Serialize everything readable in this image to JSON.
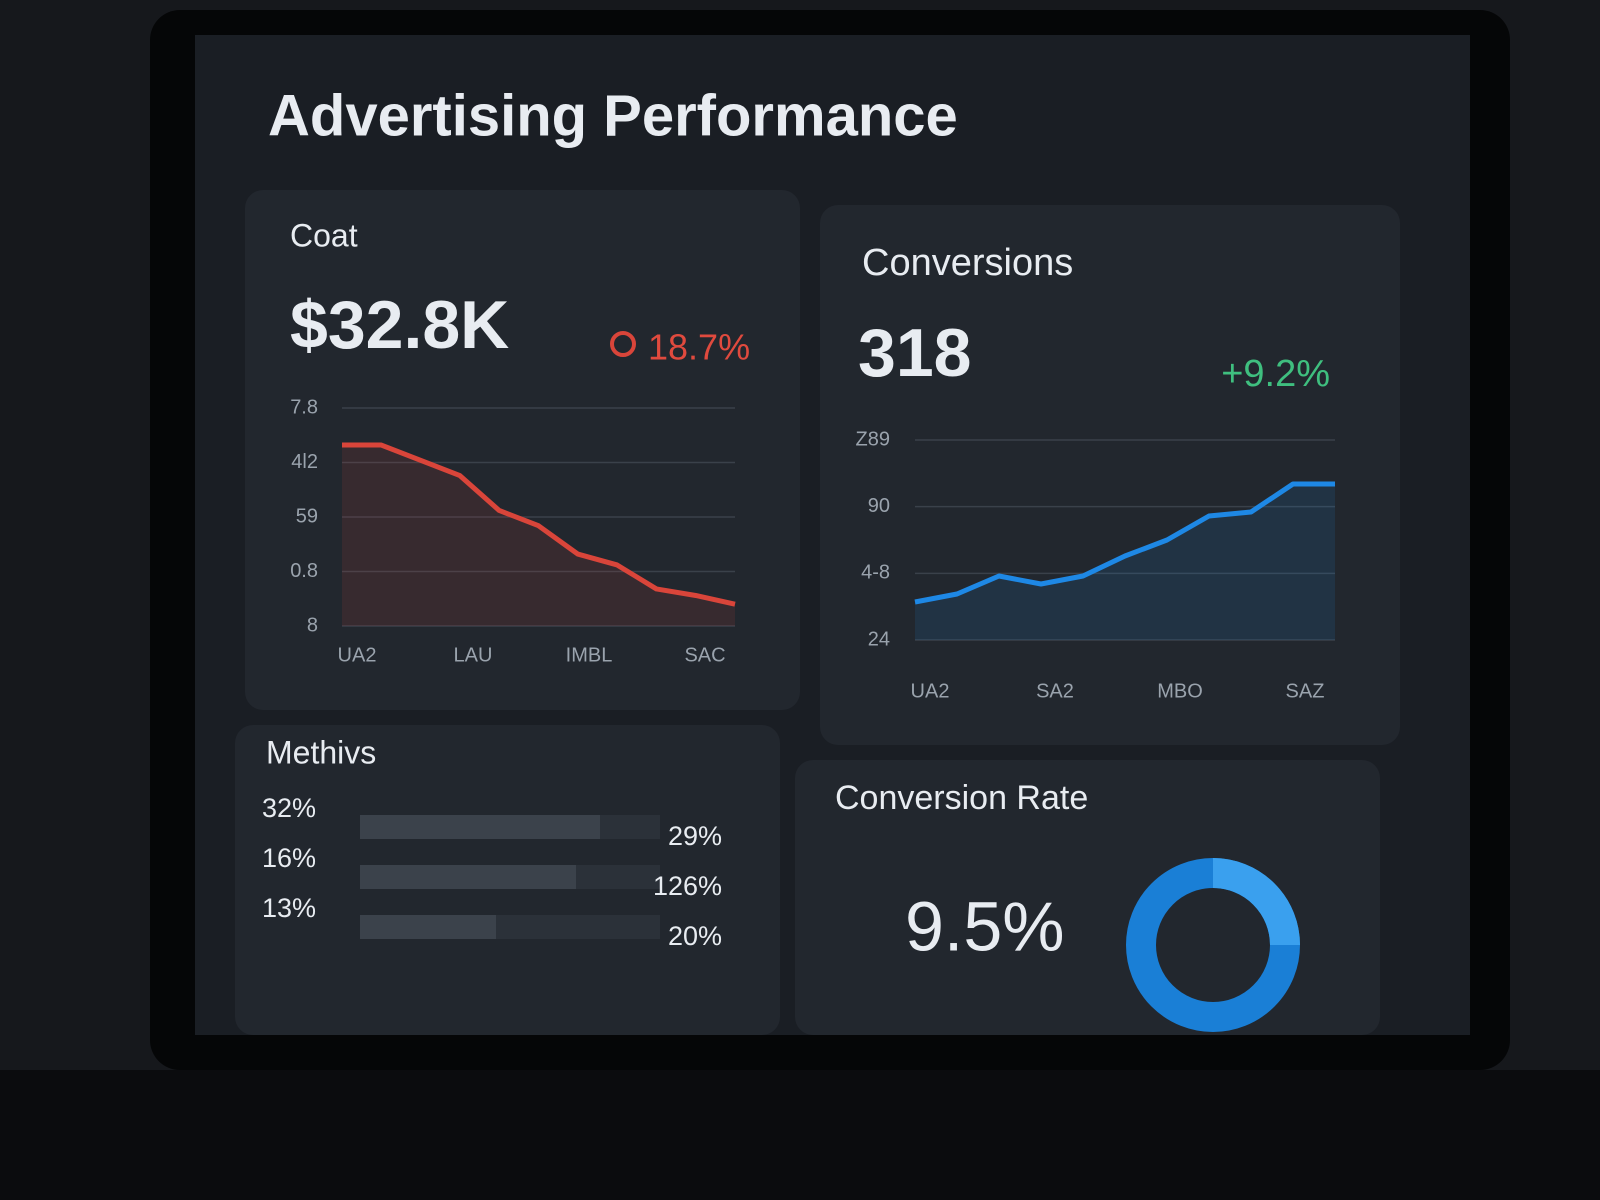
{
  "title": "Advertising Performance",
  "cards": [
    {
      "title": "Coat",
      "value": "$32.8K",
      "change": "18.7%",
      "chart": {
        "color": "#d9453a",
        "ylim": [
          0,
          100
        ],
        "yticks": [
          "7.8",
          "4l2",
          "59",
          "0.8",
          "8"
        ],
        "xticks": [
          "UA2",
          "LAU",
          "IMBL",
          "SAC"
        ],
        "values": [
          83,
          83,
          76,
          69,
          53,
          46,
          33,
          28,
          17,
          14,
          10
        ]
      }
    },
    {
      "title": "Conversions",
      "value": "318",
      "change": "+9.2%",
      "chart": {
        "color": "#1e88e5",
        "ylim": [
          0,
          100
        ],
        "yticks": [
          "Z89",
          "90",
          "4-8",
          "24"
        ],
        "xticks": [
          "UA2",
          "SA2",
          "MBO",
          "SAZ"
        ],
        "values": [
          19,
          23,
          32,
          28,
          32,
          42,
          50,
          62,
          64,
          78,
          78
        ]
      }
    }
  ],
  "methods": {
    "title": "Methivs",
    "rows": [
      {
        "label": "32%",
        "value_label": "29%",
        "bar": 60
      },
      {
        "label": "16%",
        "value_label": "126%",
        "bar": 54
      },
      {
        "label": "13%",
        "value_label": "20%",
        "bar": 34
      }
    ]
  },
  "rate": {
    "title": "Conversion Rate",
    "value": "9.5%"
  }
}
